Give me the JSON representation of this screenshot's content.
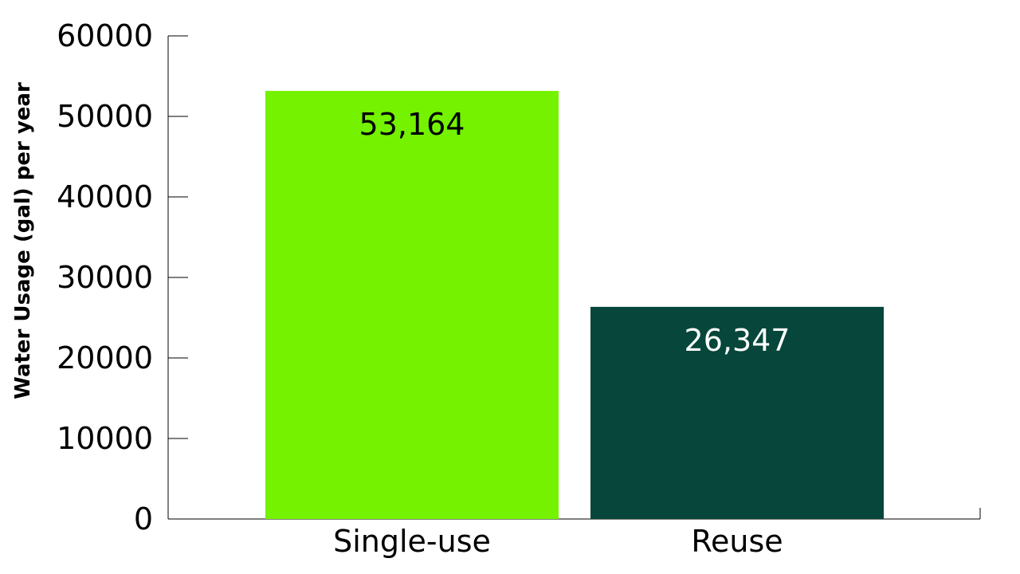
{
  "chart_data": {
    "type": "bar",
    "title": "",
    "xlabel": "",
    "ylabel": "Water Usage (gal) per year",
    "categories": [
      "Single-use",
      "Reuse"
    ],
    "values": [
      53164,
      26347
    ],
    "data_labels": [
      "53,164",
      "26,347"
    ],
    "bar_colors": [
      "#74F200",
      "#06463B"
    ],
    "data_label_colors": [
      "#000000",
      "#ffffff"
    ],
    "ylim": [
      0,
      60000
    ],
    "yticks": [
      0,
      10000,
      20000,
      30000,
      40000,
      50000,
      60000
    ],
    "ytick_labels": [
      "0",
      "10000",
      "20000",
      "30000",
      "40000",
      "50000",
      "60000"
    ],
    "grid": false,
    "legend": "none"
  }
}
